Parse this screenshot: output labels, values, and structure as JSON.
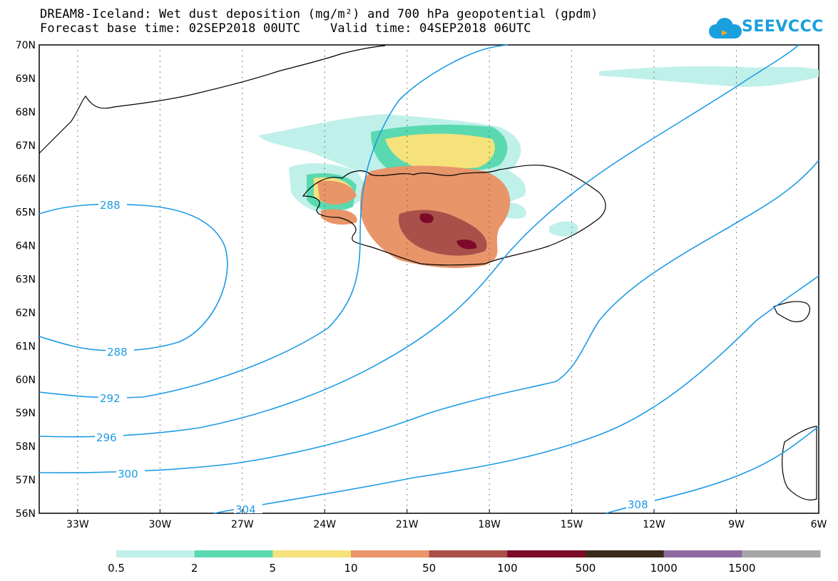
{
  "title": {
    "line1": "DREAM8-Iceland: Wet dust deposition (mg/m²) and 700 hPa geopotential (gpdm)",
    "line2": "Forecast base time: 02SEP2018 00UTC    Valid time: 04SEP2018 06UTC"
  },
  "logo": {
    "text": "SEEVCCC",
    "icon": "cloud-icon",
    "color": "#1a9fdf"
  },
  "axes": {
    "lat_ticks": [
      "70N",
      "69N",
      "68N",
      "67N",
      "66N",
      "65N",
      "64N",
      "63N",
      "62N",
      "61N",
      "60N",
      "59N",
      "58N",
      "57N",
      "56N"
    ],
    "lon_ticks": [
      "33W",
      "30W",
      "27W",
      "24W",
      "21W",
      "18W",
      "15W",
      "12W",
      "9W",
      "6W"
    ],
    "lon_range": [
      -34.4,
      -6
    ],
    "lat_range": [
      56,
      70
    ],
    "grid": "dotted"
  },
  "contours": {
    "color": "#1e9be4",
    "labels": [
      "288",
      "288",
      "292",
      "296",
      "300",
      "304",
      "308"
    ]
  },
  "legend": {
    "labels": [
      "0.5",
      "2",
      "5",
      "10",
      "50",
      "100",
      "500",
      "1000",
      "1500"
    ],
    "colors": [
      "#c0f0ea",
      "#5ad9b0",
      "#f5e27a",
      "#e8956a",
      "#a9504a",
      "#7e0a2a",
      "#3a2a1a",
      "#8e6aa0",
      "#a6a6a6"
    ]
  }
}
